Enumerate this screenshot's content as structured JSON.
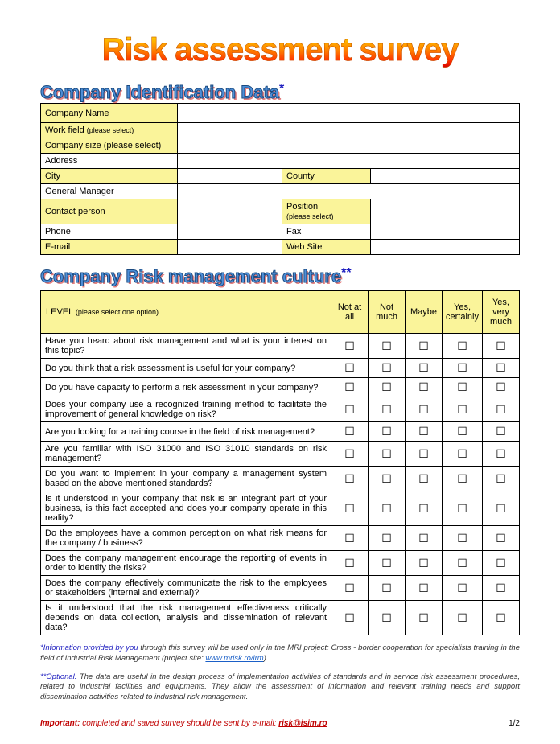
{
  "title": "Risk assessment survey",
  "section1": {
    "heading": "Company Identification Data",
    "asterisk": "*",
    "rows": {
      "company_name": "Company Name",
      "work_field": "Work field",
      "work_field_note": "(please select)",
      "company_size": "Company size (please select)",
      "address": "Address",
      "city": "City",
      "county": "County",
      "general_manager": "General Manager",
      "contact_person": "Contact person",
      "position": "Position",
      "position_note": "(please select)",
      "phone": "Phone",
      "fax": "Fax",
      "email": "E-mail",
      "website": "Web Site"
    }
  },
  "section2": {
    "heading": "Company Risk management culture",
    "asterisk": "**",
    "level_header": "LEVEL",
    "level_header_note": "(please select one option)",
    "options": [
      "Not at all",
      "Not much",
      "Maybe",
      "Yes, certainly",
      "Yes, very much"
    ],
    "checkbox_glyph": "☐",
    "questions": [
      "Have you heard about risk management and what is your interest on this topic?",
      "Do you think that a risk assessment is useful for your company?",
      "Do you have capacity to perform a risk assessment in your company?",
      "Does your company use a recognized training method to facilitate the improvement of general knowledge on risk?",
      "Are you looking for a training course in the field of risk management?",
      "Are you familiar with ISO 31000 and ISO 31010 standards on risk management?",
      "Do you want to implement in your company a management system based on the above mentioned standards?",
      "Is it understood in your company that risk is an integrant part of your business, is this fact accepted and does your company operate in this reality?",
      "Do the employees have a common perception on what risk means for the company / business?",
      "Does the company management encourage the reporting of events in order to identify the risks?",
      "Does the company effectively communicate the risk to the employees or stakeholders (internal and external)?",
      "Is it understood that the risk management effectiveness critically depends on data collection, analysis and dissemination of relevant data?"
    ]
  },
  "footnotes": {
    "f1_lead": "*Information provided by you",
    "f1_rest": " through this survey will be used only in the MRI project: Cross - border cooperation for specialists training in the field of Industrial Risk Management (project site: ",
    "f1_link": "www.mrisk.ro/irm",
    "f1_close": ").",
    "f2_lead": "**Optional.",
    "f2_rest": " The data are useful in the design process of implementation activities of standards and in service risk assessment procedures, related to industrial facilities and equipments. They allow the assessment of information and relevant training needs and support dissemination activities related to industrial risk management."
  },
  "footer": {
    "important_label": "Important:",
    "important_text": " completed and saved survey should be sent by e-mail: ",
    "important_email": "risk@isim.ro",
    "page": "1/2"
  },
  "colors": {
    "highlight_bg": "#faf49a",
    "border": "#000000",
    "link": "#1a5fc7",
    "red": "#c00000",
    "blue": "#2020c0"
  }
}
